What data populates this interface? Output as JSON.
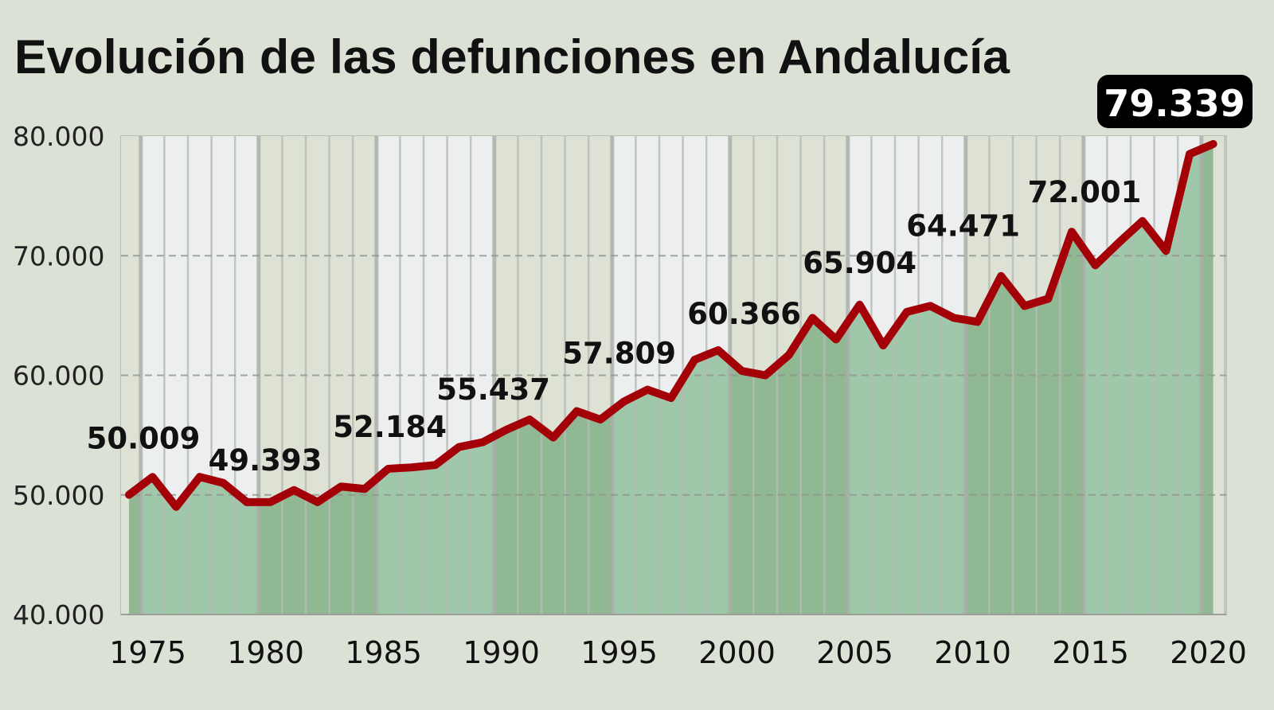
{
  "chart_data": {
    "type": "area",
    "title": "Evolución de las defunciones en Andalucía",
    "xlabel": "",
    "ylabel": "",
    "x": [
      1974,
      1975,
      1976,
      1977,
      1978,
      1979,
      1980,
      1981,
      1982,
      1983,
      1984,
      1985,
      1986,
      1987,
      1988,
      1989,
      1990,
      1991,
      1992,
      1993,
      1994,
      1995,
      1996,
      1997,
      1998,
      1999,
      2000,
      2001,
      2002,
      2003,
      2004,
      2005,
      2006,
      2007,
      2008,
      2009,
      2010,
      2011,
      2012,
      2013,
      2014,
      2015,
      2016,
      2017,
      2018,
      2019,
      2020
    ],
    "values": [
      50009,
      51500,
      49000,
      51500,
      51000,
      49393,
      49400,
      50400,
      49400,
      50700,
      50500,
      52184,
      52300,
      52500,
      54000,
      54400,
      55437,
      56300,
      54800,
      57000,
      56300,
      57809,
      58800,
      58100,
      61300,
      62100,
      60366,
      60000,
      61700,
      64800,
      63000,
      65904,
      62500,
      65300,
      65800,
      64800,
      64471,
      68300,
      65800,
      66400,
      72001,
      69200,
      71100,
      72900,
      70400,
      78500,
      79339
    ],
    "ylim": [
      40000,
      80000
    ],
    "yticks": [
      40000,
      50000,
      60000,
      70000,
      80000
    ],
    "ytick_labels": [
      "40.000",
      "50.000",
      "60.000",
      "70.000",
      "80.000"
    ],
    "xticks": [
      1975,
      1980,
      1985,
      1990,
      1995,
      2000,
      2005,
      2010,
      2015,
      2020
    ],
    "xtick_labels": [
      "1975",
      "1980",
      "1985",
      "1990",
      "1995",
      "2000",
      "2005",
      "2010",
      "2015",
      "2020"
    ],
    "grid": "horizontal dashed at y ticks; vertical lines every year, bands alternating every 5 years",
    "annotations": [
      {
        "year": 1974,
        "text": "50.009"
      },
      {
        "year": 1979,
        "text": "49.393"
      },
      {
        "year": 1985,
        "text": "52.184"
      },
      {
        "year": 1990,
        "text": "55.437"
      },
      {
        "year": 1995,
        "text": "57.809"
      },
      {
        "year": 2000,
        "text": "60.366"
      },
      {
        "year": 2005,
        "text": "65.904"
      },
      {
        "year": 2010,
        "text": "64.471"
      },
      {
        "year": 2014,
        "text": "72.001"
      }
    ],
    "highlight": {
      "year": 2020,
      "text": "79.339"
    },
    "colors": {
      "background": "#dce1d6",
      "band_light": "#eceef0",
      "band_green": "#dde2d5",
      "area_light": "#9fc8aa",
      "area_dark": "#8fb893",
      "line": "#a30008",
      "highlight_box": "#000000"
    }
  }
}
